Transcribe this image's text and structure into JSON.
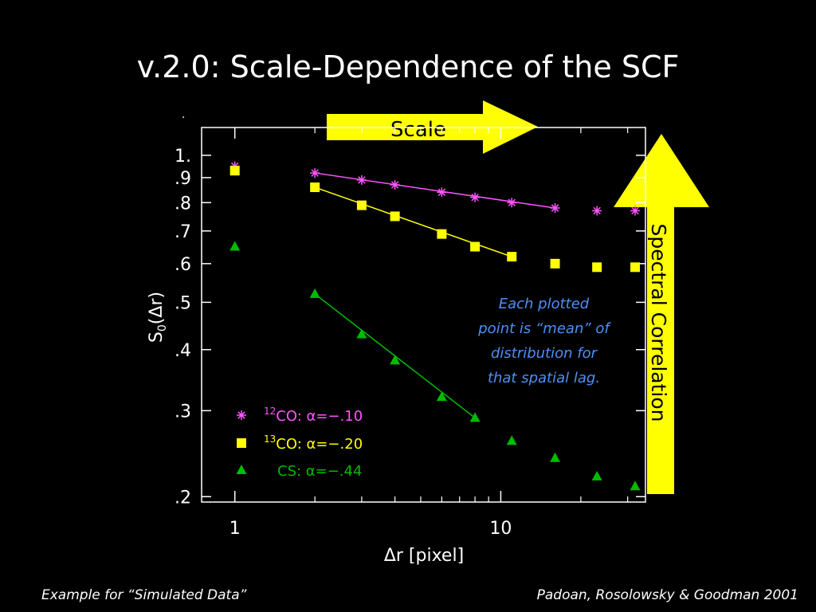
{
  "slide": {
    "title": "v.2.0: Scale-Dependence of the SCF",
    "footer_left": "Example for “Simulated Data”",
    "footer_right": "Padoan, Rosolowsky & Goodman 2001",
    "note": "Each plotted point is “mean” of distribution for that spatial lag.",
    "note_color": "#4f8ff7"
  },
  "arrows": {
    "scale_label": "Scale",
    "spectral_label": "Spectral Correlation",
    "fill": "#ffff00"
  },
  "chart_data": {
    "type": "scatter",
    "xlabel": "Δr [pixel]",
    "ylabel": "S0(Δr)",
    "xscale": "log",
    "yscale": "log",
    "xlim": [
      0.75,
      35
    ],
    "ylim": [
      0.195,
      1.14
    ],
    "x_ticks": [
      1,
      10
    ],
    "x_ticklabels": [
      "1",
      "10"
    ],
    "y_ticks": [
      1.0,
      0.9,
      0.8,
      0.7,
      0.6,
      0.5,
      0.4,
      0.3,
      0.2
    ],
    "y_ticklabels": [
      "1.",
      ".9",
      ".8",
      ".7",
      ".6",
      ".5",
      ".4",
      ".3",
      ".2"
    ],
    "legend_position": "bottom-left",
    "series": [
      {
        "name": "12CO: α=−.10",
        "legend_prefix": "12",
        "legend_text": "CO: α=−.10",
        "marker": "asterisk",
        "color": "#ff55ff",
        "x": [
          1,
          2,
          3,
          4,
          6,
          8,
          11,
          16,
          23,
          32
        ],
        "y": [
          0.95,
          0.92,
          0.89,
          0.87,
          0.84,
          0.82,
          0.8,
          0.78,
          0.77,
          0.77
        ],
        "fit": {
          "x": [
            2,
            16
          ],
          "y": [
            0.92,
            0.78
          ]
        }
      },
      {
        "name": "13CO: α=−.20",
        "legend_prefix": "13",
        "legend_text": "CO: α=−.20",
        "marker": "square",
        "color": "#ffff00",
        "x": [
          1,
          2,
          3,
          4,
          6,
          8,
          11,
          16,
          23,
          32
        ],
        "y": [
          0.93,
          0.86,
          0.79,
          0.75,
          0.69,
          0.65,
          0.62,
          0.6,
          0.59,
          0.59
        ],
        "fit": {
          "x": [
            2,
            11
          ],
          "y": [
            0.86,
            0.62
          ]
        }
      },
      {
        "name": "CS: α=−.44",
        "legend_prefix": "",
        "legend_text": "CS: α=−.44",
        "marker": "triangle",
        "color": "#00bb00",
        "x": [
          1,
          2,
          3,
          4,
          6,
          8,
          11,
          16,
          23,
          32
        ],
        "y": [
          0.65,
          0.52,
          0.43,
          0.38,
          0.32,
          0.29,
          0.26,
          0.24,
          0.22,
          0.21
        ],
        "fit": {
          "x": [
            2,
            8
          ],
          "y": [
            0.52,
            0.29
          ]
        }
      }
    ]
  }
}
